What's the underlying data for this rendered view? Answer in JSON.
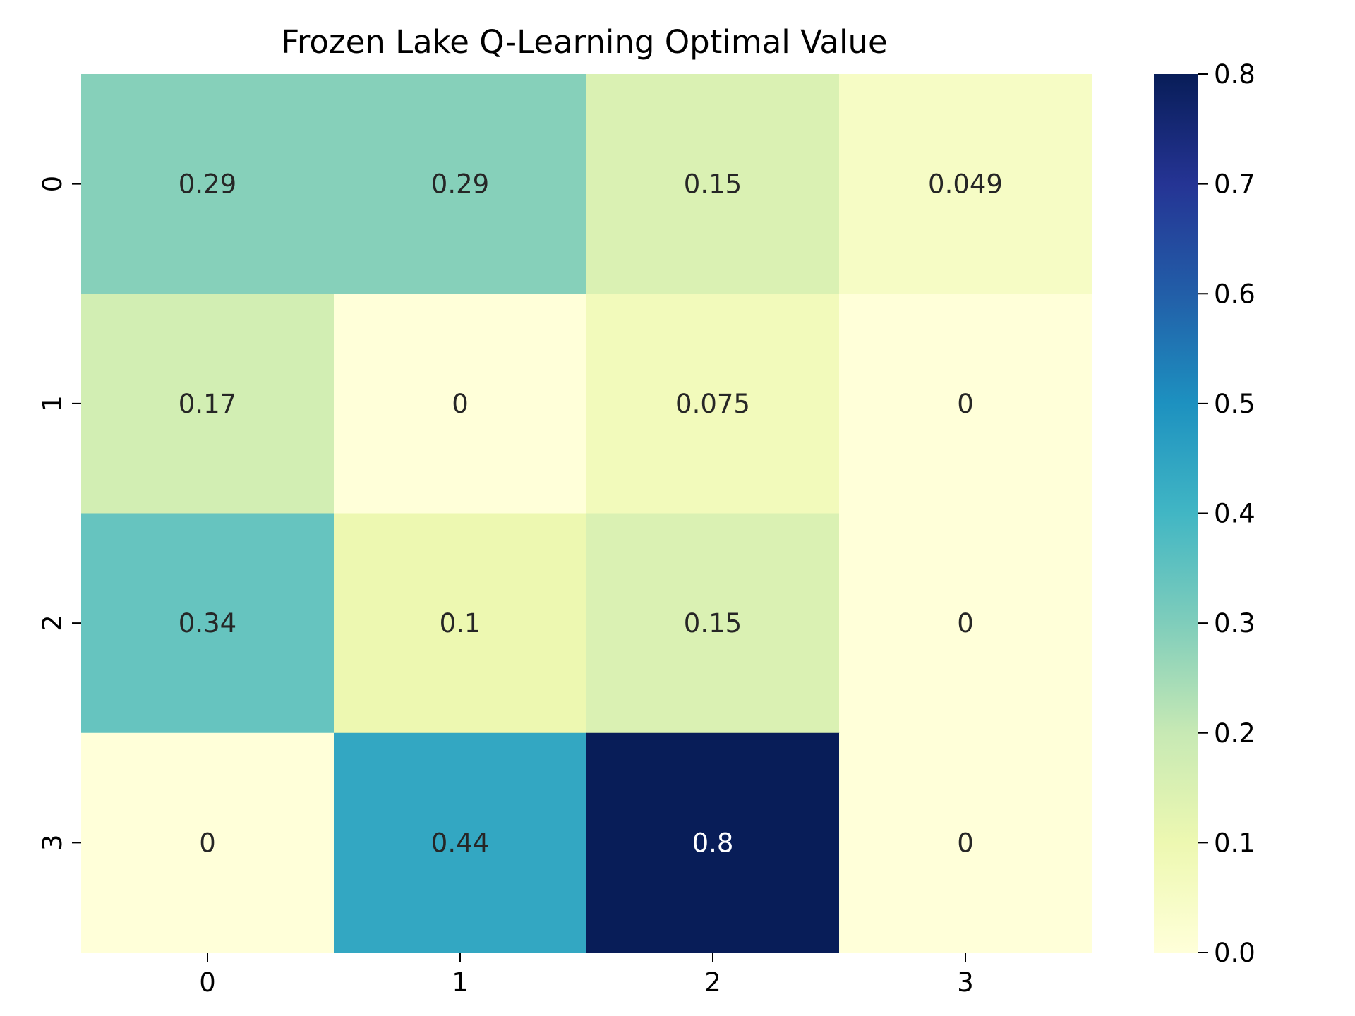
{
  "chart_data": {
    "type": "heatmap",
    "title": "Frozen Lake Q-Learning Optimal Value",
    "x_categories": [
      "0",
      "1",
      "2",
      "3"
    ],
    "y_categories": [
      "0",
      "1",
      "2",
      "3"
    ],
    "values": [
      [
        0.29,
        0.29,
        0.15,
        0.049
      ],
      [
        0.17,
        0,
        0.075,
        0
      ],
      [
        0.34,
        0.1,
        0.15,
        0
      ],
      [
        0,
        0.44,
        0.8,
        0
      ]
    ],
    "annotations": [
      [
        "0.29",
        "0.29",
        "0.15",
        "0.049"
      ],
      [
        "0.17",
        "0",
        "0.075",
        "0"
      ],
      [
        "0.34",
        "0.1",
        "0.15",
        "0"
      ],
      [
        "0",
        "0.44",
        "0.8",
        "0"
      ]
    ],
    "colormap": "YlGnBu",
    "colorbar": {
      "range": [
        0,
        0.8
      ],
      "ticks": [
        "0.0",
        "0.1",
        "0.2",
        "0.3",
        "0.4",
        "0.5",
        "0.6",
        "0.7",
        "0.8"
      ]
    },
    "text_colors": {
      "light_cell": "#262626",
      "dark_cell": "#ffffff"
    }
  }
}
